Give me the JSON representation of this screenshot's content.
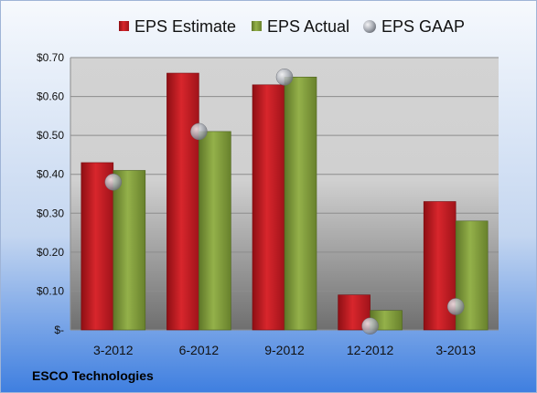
{
  "chart_data": {
    "type": "bar",
    "categories": [
      "3-2012",
      "6-2012",
      "9-2012",
      "12-2012",
      "3-2013"
    ],
    "series": [
      {
        "name": "EPS Estimate",
        "values": [
          0.43,
          0.66,
          0.63,
          0.09,
          0.33
        ],
        "color": "#c0191f"
      },
      {
        "name": "EPS Actual",
        "values": [
          0.41,
          0.51,
          0.65,
          0.05,
          0.28
        ],
        "color": "#7f9a3a"
      }
    ],
    "overlay": {
      "name": "EPS GAAP",
      "type": "scatter",
      "values": [
        0.38,
        0.51,
        0.65,
        0.01,
        0.06
      ],
      "color": "#a8acb4"
    },
    "yticks": [
      "$-",
      "$0.10",
      "$0.20",
      "$0.30",
      "$0.40",
      "$0.50",
      "$0.60",
      "$0.70"
    ],
    "ylim": [
      0,
      0.7
    ],
    "legend_placement": "top",
    "grid": true,
    "footer": "ESCO Technologies"
  }
}
